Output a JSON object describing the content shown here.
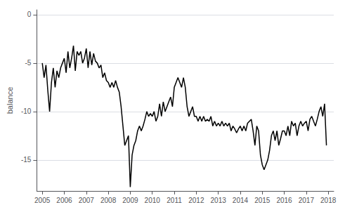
{
  "chart_data": {
    "type": "line",
    "ylabel": "balance",
    "x": [
      2005.0,
      2005.083,
      2005.167,
      2005.25,
      2005.333,
      2005.417,
      2005.5,
      2005.583,
      2005.667,
      2005.75,
      2005.833,
      2005.917,
      2006.0,
      2006.083,
      2006.167,
      2006.25,
      2006.333,
      2006.417,
      2006.5,
      2006.583,
      2006.667,
      2006.75,
      2006.833,
      2006.917,
      2007.0,
      2007.083,
      2007.167,
      2007.25,
      2007.333,
      2007.417,
      2007.5,
      2007.583,
      2007.667,
      2007.75,
      2007.833,
      2007.917,
      2008.0,
      2008.083,
      2008.167,
      2008.25,
      2008.333,
      2008.417,
      2008.5,
      2008.583,
      2008.667,
      2008.75,
      2008.833,
      2008.917,
      2009.0,
      2009.083,
      2009.167,
      2009.25,
      2009.333,
      2009.417,
      2009.5,
      2009.583,
      2009.667,
      2009.75,
      2009.833,
      2009.917,
      2010.0,
      2010.083,
      2010.167,
      2010.25,
      2010.333,
      2010.417,
      2010.5,
      2010.583,
      2010.667,
      2010.75,
      2010.833,
      2010.917,
      2011.0,
      2011.083,
      2011.167,
      2011.25,
      2011.333,
      2011.417,
      2011.5,
      2011.583,
      2011.667,
      2011.75,
      2011.833,
      2011.917,
      2012.0,
      2012.083,
      2012.167,
      2012.25,
      2012.333,
      2012.417,
      2012.5,
      2012.583,
      2012.667,
      2012.75,
      2012.833,
      2012.917,
      2013.0,
      2013.083,
      2013.167,
      2013.25,
      2013.333,
      2013.417,
      2013.5,
      2013.583,
      2013.667,
      2013.75,
      2013.833,
      2013.917,
      2014.0,
      2014.083,
      2014.167,
      2014.25,
      2014.333,
      2014.417,
      2014.5,
      2014.583,
      2014.667,
      2014.75,
      2014.833,
      2014.917,
      2015.0,
      2015.083,
      2015.167,
      2015.25,
      2015.333,
      2015.417,
      2015.5,
      2015.583,
      2015.667,
      2015.75,
      2015.833,
      2015.917,
      2016.0,
      2016.083,
      2016.167,
      2016.25,
      2016.333,
      2016.417,
      2016.5,
      2016.583,
      2016.667,
      2016.75,
      2016.833,
      2016.917,
      2017.0,
      2017.083,
      2017.167,
      2017.25,
      2017.333,
      2017.417,
      2017.5,
      2017.583,
      2017.667,
      2017.75,
      2017.833,
      2017.917
    ],
    "values": [
      -5.0,
      -6.5,
      -5.2,
      -7.8,
      -10.0,
      -7.0,
      -5.5,
      -7.5,
      -5.8,
      -6.5,
      -5.5,
      -5.0,
      -4.5,
      -6.0,
      -3.8,
      -5.5,
      -4.5,
      -3.2,
      -5.8,
      -3.8,
      -4.2,
      -3.8,
      -5.0,
      -4.5,
      -3.5,
      -5.5,
      -3.8,
      -5.2,
      -4.0,
      -4.8,
      -5.0,
      -5.5,
      -5.2,
      -6.5,
      -6.0,
      -6.8,
      -7.0,
      -7.5,
      -7.0,
      -7.5,
      -6.8,
      -7.5,
      -8.0,
      -9.5,
      -11.5,
      -13.5,
      -13.0,
      -12.5,
      -17.8,
      -14.5,
      -13.5,
      -13.0,
      -12.0,
      -11.5,
      -12.0,
      -11.5,
      -10.8,
      -10.0,
      -10.5,
      -10.2,
      -10.5,
      -10.0,
      -11.0,
      -10.5,
      -9.2,
      -10.5,
      -9.0,
      -10.0,
      -9.5,
      -9.0,
      -8.5,
      -9.5,
      -7.5,
      -7.0,
      -6.5,
      -7.0,
      -7.5,
      -6.5,
      -7.5,
      -9.5,
      -10.5,
      -10.0,
      -9.5,
      -10.5,
      -10.5,
      -11.0,
      -10.5,
      -11.0,
      -10.5,
      -11.0,
      -10.8,
      -11.0,
      -10.5,
      -11.5,
      -11.0,
      -11.5,
      -11.2,
      -11.5,
      -11.0,
      -11.5,
      -11.2,
      -11.5,
      -11.2,
      -12.0,
      -11.5,
      -11.8,
      -12.2,
      -11.8,
      -11.5,
      -12.0,
      -11.5,
      -12.0,
      -11.2,
      -11.0,
      -10.8,
      -12.0,
      -13.5,
      -11.5,
      -12.0,
      -14.5,
      -15.5,
      -16.0,
      -15.5,
      -15.0,
      -14.0,
      -12.5,
      -12.0,
      -13.0,
      -12.0,
      -13.5,
      -12.8,
      -12.0,
      -12.0,
      -12.5,
      -11.5,
      -12.5,
      -11.0,
      -11.5,
      -11.2,
      -12.5,
      -11.5,
      -11.0,
      -11.5,
      -11.2,
      -11.0,
      -12.0,
      -10.8,
      -10.5,
      -11.0,
      -11.5,
      -10.8,
      -10.0,
      -9.5,
      -10.5,
      -9.2,
      -13.5
    ],
    "color": "#000000",
    "xlim": [
      2004.75,
      2018.25
    ],
    "ylim": [
      -18.2,
      0.5
    ],
    "xticks": [
      2005,
      2006,
      2007,
      2008,
      2009,
      2010,
      2011,
      2012,
      2013,
      2014,
      2015,
      2016,
      2017,
      2018
    ],
    "yticks": [
      0,
      -5,
      -10,
      -15
    ],
    "grid": true
  }
}
